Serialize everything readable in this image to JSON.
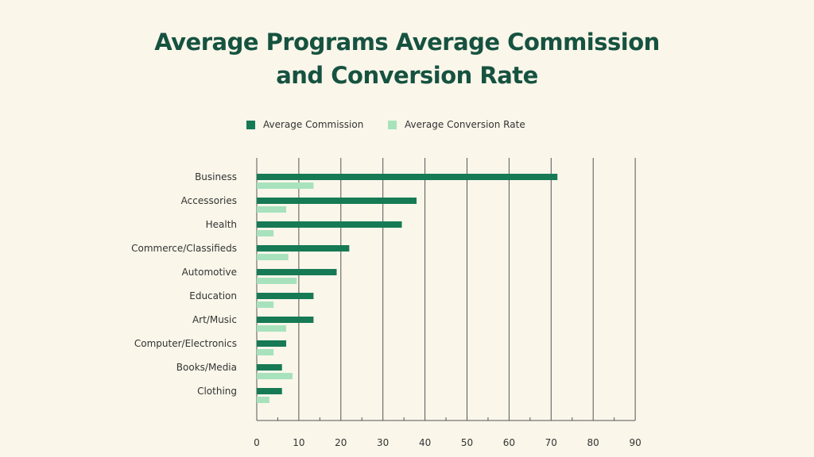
{
  "chart_data": {
    "type": "bar",
    "orientation": "horizontal",
    "title_lines": [
      "Average Programs Average Commission",
      "and Conversion Rate"
    ],
    "categories": [
      "Business",
      "Accessories",
      "Health",
      "Commerce/Classifieds",
      "Automotive",
      "Education",
      "Art/Music",
      "Computer/Electronics",
      "Books/Media",
      "Clothing"
    ],
    "series": [
      {
        "name": "Average Commission",
        "color": "#167a55",
        "values": [
          71.5,
          38,
          34.5,
          22,
          19,
          13.5,
          13.5,
          7,
          6,
          6
        ]
      },
      {
        "name": "Average Conversion Rate",
        "color": "#a7e2bd",
        "values": [
          13.5,
          7,
          4,
          7.5,
          9.5,
          4,
          7,
          4,
          8.5,
          3
        ]
      }
    ],
    "xlim": [
      0,
      90
    ],
    "xticks": [
      "0",
      "10",
      "20",
      "30",
      "40",
      "50",
      "60",
      "70",
      "80",
      "90"
    ],
    "grid": "vertical",
    "legend_position": "top"
  }
}
